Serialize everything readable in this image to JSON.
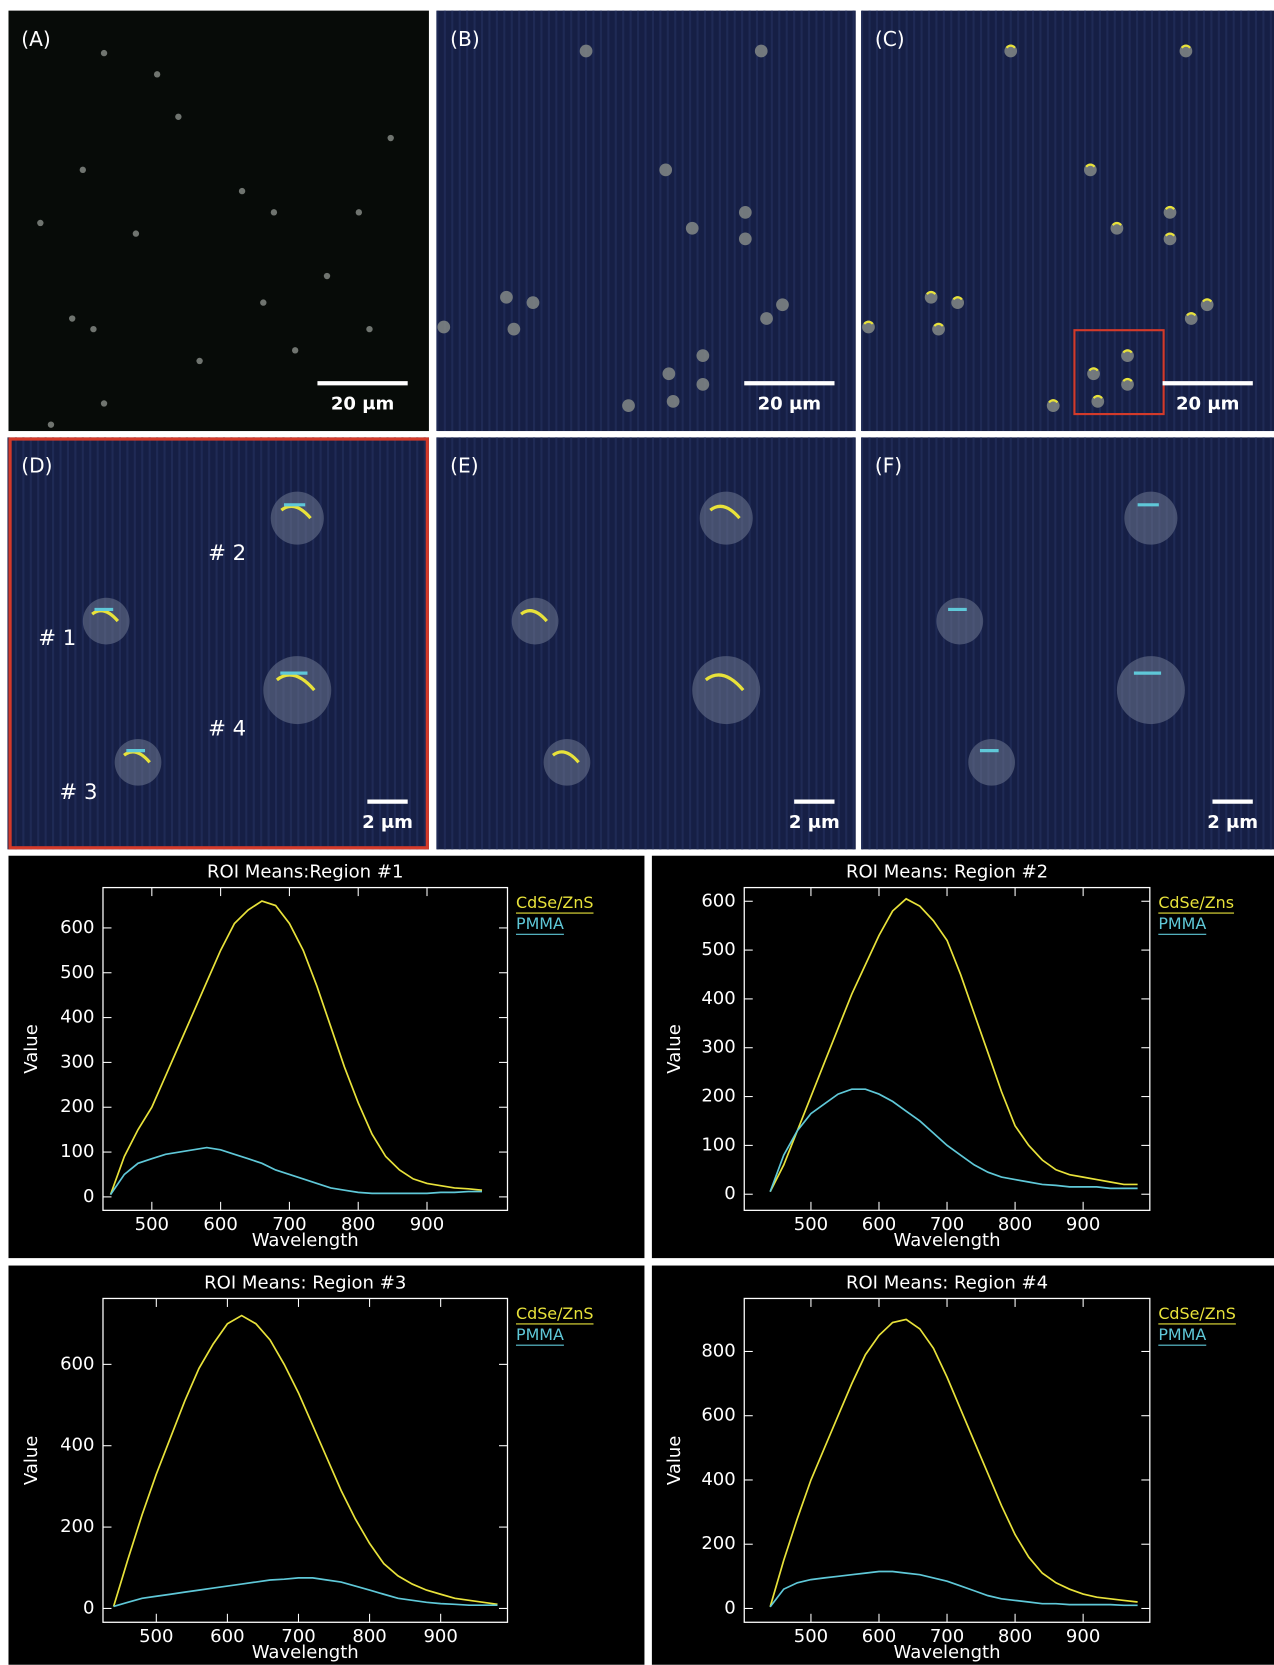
{
  "panels": [
    {
      "label": "(A)",
      "scale": "20 μm"
    },
    {
      "label": "(B)",
      "scale": "20 μm"
    },
    {
      "label": "(C)",
      "scale": "20 μm"
    },
    {
      "label": "(D)",
      "scale": "2 μm",
      "regions": [
        "# 1",
        "# 2",
        "# 3",
        "# 4"
      ]
    },
    {
      "label": "(E)",
      "scale": "2 μm"
    },
    {
      "label": "(F)",
      "scale": "2 μm"
    }
  ],
  "chart_data": [
    {
      "type": "line",
      "title": "ROI Means:Region #1",
      "x_label": "Wavelength",
      "y_label": "Value",
      "x": [
        440,
        460,
        480,
        500,
        520,
        540,
        560,
        580,
        600,
        620,
        640,
        660,
        680,
        700,
        720,
        740,
        760,
        780,
        800,
        820,
        840,
        860,
        880,
        900,
        920,
        940,
        960,
        980
      ],
      "series": [
        {
          "name": "CdSe/ZnS",
          "color": "#e8e23a",
          "values": [
            5,
            90,
            150,
            200,
            270,
            340,
            410,
            480,
            550,
            610,
            640,
            660,
            650,
            610,
            550,
            470,
            380,
            290,
            210,
            140,
            90,
            60,
            40,
            30,
            25,
            20,
            18,
            15
          ]
        },
        {
          "name": "PMMA",
          "color": "#5fc8d8",
          "values": [
            5,
            50,
            75,
            85,
            95,
            100,
            105,
            110,
            105,
            95,
            85,
            75,
            60,
            50,
            40,
            30,
            20,
            15,
            10,
            8,
            8,
            8,
            8,
            8,
            10,
            10,
            12,
            12
          ]
        }
      ],
      "xlim": [
        429,
        1017
      ],
      "ylim": [
        -30,
        690
      ],
      "xticks": [
        500,
        600,
        700,
        800,
        900
      ],
      "yticks": [
        0,
        100,
        200,
        300,
        400,
        500,
        600
      ]
    },
    {
      "type": "line",
      "title": "ROI Means: Region #2",
      "x_label": "Wavelength",
      "y_label": "Value",
      "x": [
        440,
        460,
        480,
        500,
        520,
        540,
        560,
        580,
        600,
        620,
        640,
        660,
        680,
        700,
        720,
        740,
        760,
        780,
        800,
        820,
        840,
        860,
        880,
        900,
        920,
        940,
        960,
        980
      ],
      "series": [
        {
          "name": "CdSe/Zns",
          "color": "#e8e23a",
          "values": [
            5,
            60,
            130,
            200,
            270,
            340,
            410,
            470,
            530,
            580,
            605,
            590,
            560,
            520,
            450,
            370,
            290,
            210,
            140,
            100,
            70,
            50,
            40,
            35,
            30,
            25,
            20,
            20
          ]
        },
        {
          "name": "PMMA",
          "color": "#5fc8d8",
          "values": [
            5,
            80,
            130,
            165,
            185,
            205,
            215,
            215,
            205,
            190,
            170,
            150,
            125,
            100,
            80,
            60,
            45,
            35,
            30,
            25,
            20,
            18,
            15,
            15,
            15,
            12,
            12,
            12
          ]
        }
      ],
      "xlim": [
        402,
        998
      ],
      "ylim": [
        -33,
        628
      ],
      "xticks": [
        500,
        600,
        700,
        800,
        900
      ],
      "yticks": [
        0,
        100,
        200,
        300,
        400,
        500,
        600
      ]
    },
    {
      "type": "line",
      "title": "ROI Means: Region #3",
      "x_label": "Wavelength",
      "y_label": "Value",
      "x": [
        440,
        460,
        480,
        500,
        520,
        540,
        560,
        580,
        600,
        620,
        640,
        660,
        680,
        700,
        720,
        740,
        760,
        780,
        800,
        820,
        840,
        860,
        880,
        900,
        920,
        940,
        960,
        980
      ],
      "series": [
        {
          "name": "CdSe/ZnS",
          "color": "#e8e23a",
          "values": [
            5,
            120,
            230,
            330,
            420,
            510,
            590,
            650,
            700,
            720,
            700,
            660,
            600,
            530,
            450,
            370,
            290,
            220,
            160,
            110,
            80,
            60,
            45,
            35,
            25,
            20,
            15,
            10
          ]
        },
        {
          "name": "PMMA",
          "color": "#5fc8d8",
          "values": [
            5,
            15,
            25,
            30,
            35,
            40,
            45,
            50,
            55,
            60,
            65,
            70,
            72,
            75,
            75,
            70,
            65,
            55,
            45,
            35,
            25,
            20,
            15,
            12,
            10,
            8,
            8,
            8
          ]
        }
      ],
      "xlim": [
        425,
        994
      ],
      "ylim": [
        -34,
        762
      ],
      "xticks": [
        500,
        600,
        700,
        800,
        900
      ],
      "yticks": [
        0,
        200,
        400,
        600
      ]
    },
    {
      "type": "line",
      "title": "ROI Means: Region #4",
      "x_label": "Wavelength",
      "y_label": "Value",
      "x": [
        440,
        460,
        480,
        500,
        520,
        540,
        560,
        580,
        600,
        620,
        640,
        660,
        680,
        700,
        720,
        740,
        760,
        780,
        800,
        820,
        840,
        860,
        880,
        900,
        920,
        940,
        960,
        980
      ],
      "series": [
        {
          "name": "CdSe/ZnS",
          "color": "#e8e23a",
          "values": [
            5,
            150,
            280,
            400,
            500,
            600,
            700,
            790,
            850,
            890,
            900,
            870,
            810,
            720,
            620,
            520,
            420,
            320,
            230,
            160,
            110,
            80,
            60,
            45,
            35,
            30,
            25,
            20
          ]
        },
        {
          "name": "PMMA",
          "color": "#5fc8d8",
          "values": [
            5,
            60,
            80,
            90,
            95,
            100,
            105,
            110,
            115,
            115,
            110,
            105,
            95,
            85,
            70,
            55,
            40,
            30,
            25,
            20,
            15,
            15,
            12,
            12,
            12,
            12,
            10,
            10
          ]
        }
      ],
      "xlim": [
        402,
        998
      ],
      "ylim": [
        -43,
        965
      ],
      "xticks": [
        500,
        600,
        700,
        800,
        900
      ],
      "yticks": [
        0,
        200,
        400,
        600,
        800
      ]
    }
  ]
}
